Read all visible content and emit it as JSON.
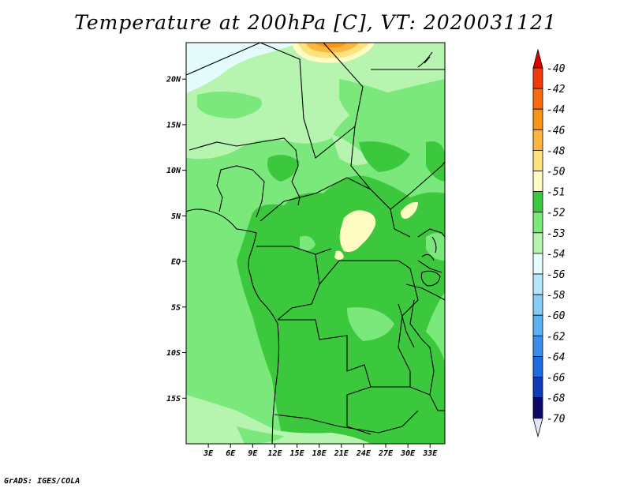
{
  "title": "Temperature at 200hPa [C], VT: 2020031121",
  "credit": "GrADS: IGES/COLA",
  "map": {
    "lon_range": [
      0,
      35
    ],
    "lat_range": [
      -20,
      24
    ],
    "lat_ticks": [
      {
        "value": 20,
        "label": "20N"
      },
      {
        "value": 15,
        "label": "15N"
      },
      {
        "value": 10,
        "label": "10N"
      },
      {
        "value": 5,
        "label": "5N"
      },
      {
        "value": 0,
        "label": "EQ"
      },
      {
        "value": -5,
        "label": "5S"
      },
      {
        "value": -10,
        "label": "10S"
      },
      {
        "value": -15,
        "label": "15S"
      }
    ],
    "lon_ticks": [
      {
        "value": 3,
        "label": "3E"
      },
      {
        "value": 6,
        "label": "6E"
      },
      {
        "value": 9,
        "label": "9E"
      },
      {
        "value": 12,
        "label": "12E"
      },
      {
        "value": 15,
        "label": "15E"
      },
      {
        "value": 18,
        "label": "18E"
      },
      {
        "value": 21,
        "label": "21E"
      },
      {
        "value": 24,
        "label": "24E"
      },
      {
        "value": 27,
        "label": "27E"
      },
      {
        "value": 30,
        "label": "30E"
      },
      {
        "value": 33,
        "label": "33E"
      }
    ]
  },
  "colorbar": {
    "levels": [
      {
        "label": "-40",
        "color": "#e00000"
      },
      {
        "label": "-42",
        "color": "#f03c0c"
      },
      {
        "label": "-44",
        "color": "#f86a0e"
      },
      {
        "label": "-46",
        "color": "#fa9414"
      },
      {
        "label": "-48",
        "color": "#fcb640"
      },
      {
        "label": "-50",
        "color": "#fde27e"
      },
      {
        "label": "-51",
        "color": "#fefcc2"
      },
      {
        "label": "-52",
        "color": "#3cc83c"
      },
      {
        "label": "-53",
        "color": "#7ae87a"
      },
      {
        "label": "-54",
        "color": "#b6f4b0"
      },
      {
        "label": "-56",
        "color": "#e4fcfc"
      },
      {
        "label": "-58",
        "color": "#b4e6fa"
      },
      {
        "label": "-60",
        "color": "#86ccf6"
      },
      {
        "label": "-62",
        "color": "#5ab0f0"
      },
      {
        "label": "-64",
        "color": "#3a8ee8"
      },
      {
        "label": "-66",
        "color": "#1e6ce0"
      },
      {
        "label": "-68",
        "color": "#0f3cb4"
      },
      {
        "label": "-70",
        "color": "#0a0a64"
      }
    ],
    "top_color": "#e00000",
    "bottom_color": "#e4e4f8"
  }
}
